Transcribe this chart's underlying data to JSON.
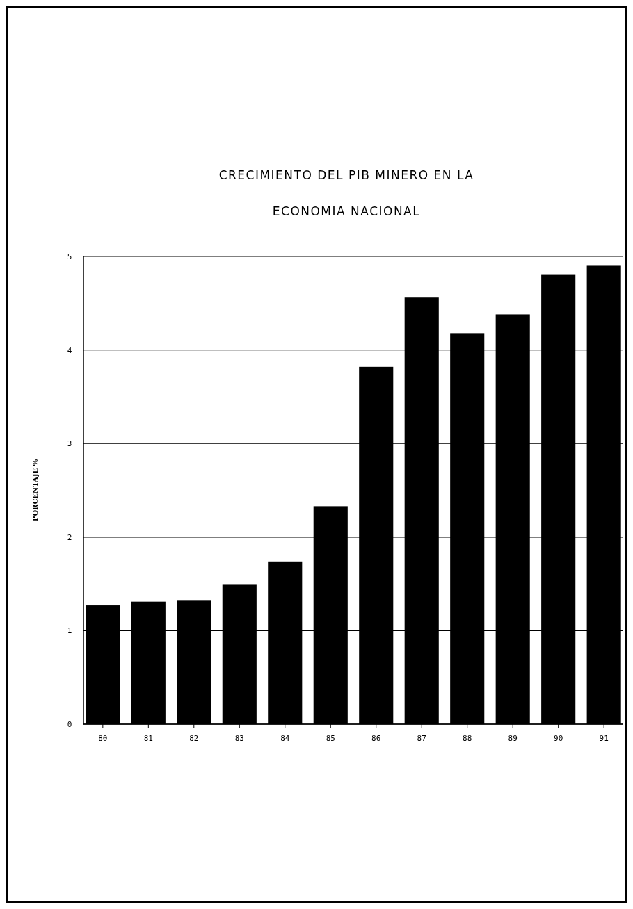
{
  "chart_data": {
    "type": "bar",
    "title": "CRECIMIENTO DEL PIB MINERO EN LA ECONOMIA NACIONAL",
    "ylabel": "PORCENTAJE %",
    "categories": [
      "80",
      "81",
      "82",
      "83",
      "84",
      "85",
      "86",
      "87",
      "88",
      "89",
      "90",
      "91"
    ],
    "values": [
      1.27,
      1.31,
      1.32,
      1.49,
      1.74,
      2.33,
      3.82,
      4.56,
      4.18,
      4.38,
      4.81,
      4.9
    ],
    "color": "#000000",
    "ylim": [
      0,
      5
    ],
    "yticks": [
      0,
      1,
      2,
      3,
      4,
      5
    ],
    "grid": "y"
  }
}
